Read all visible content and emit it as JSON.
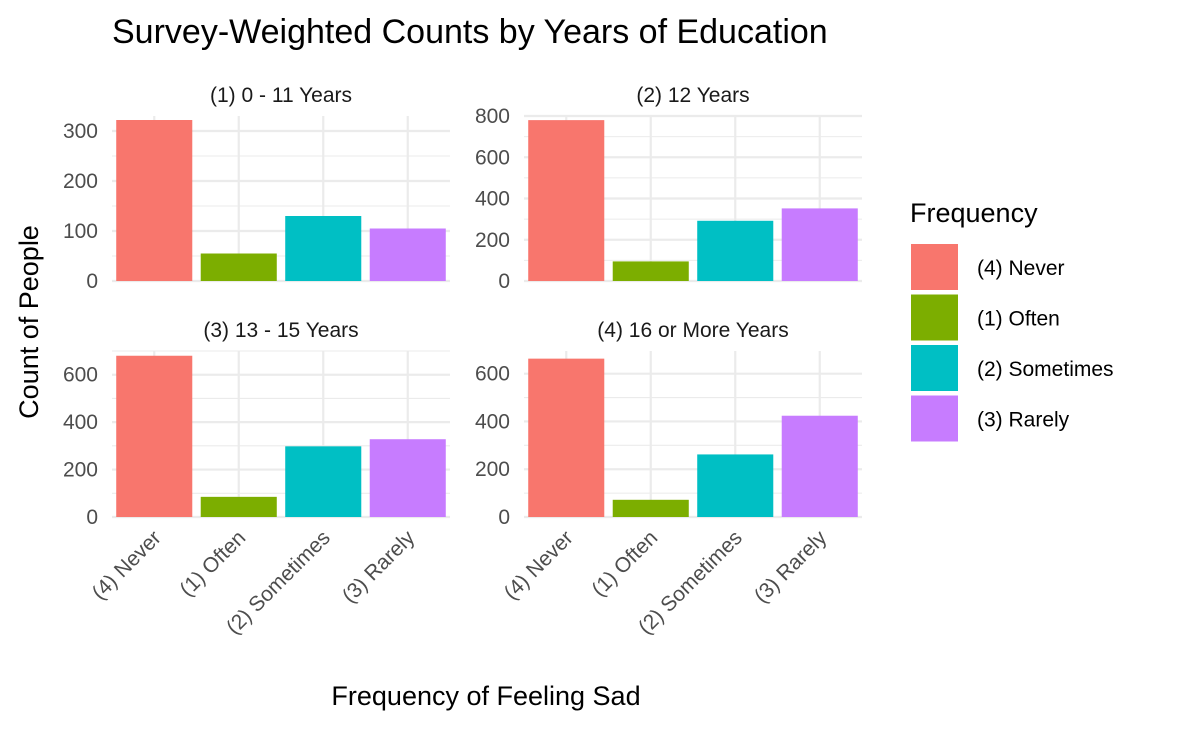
{
  "chart_data": {
    "type": "bar",
    "title": "Survey-Weighted Counts by Years of Education",
    "xlabel": "Frequency of Feeling Sad",
    "ylabel": "Count of People",
    "categories": [
      "(4) Never",
      "(1) Often",
      "(2) Sometimes",
      "(3) Rarely"
    ],
    "legend": {
      "title": "Frequency",
      "placement": "right",
      "entries": [
        "(4) Never",
        "(1) Often",
        "(2) Sometimes",
        "(3) Rarely"
      ]
    },
    "colors": [
      "#F8766D",
      "#7CAE00",
      "#00BFC4",
      "#C77CFF"
    ],
    "grid": true,
    "panels": [
      {
        "title": "(1) 0 - 11 Years",
        "values": [
          322,
          55,
          130,
          105
        ],
        "ylim": [
          0,
          330
        ],
        "yticks": [
          0,
          100,
          200,
          300
        ]
      },
      {
        "title": "(2) 12 Years",
        "values": [
          780,
          95,
          292,
          352
        ],
        "ylim": [
          0,
          800
        ],
        "yticks": [
          0,
          200,
          400,
          600,
          800
        ]
      },
      {
        "title": "(3) 13 - 15 Years",
        "values": [
          680,
          85,
          298,
          328
        ],
        "ylim": [
          0,
          700
        ],
        "yticks": [
          0,
          200,
          400,
          600
        ]
      },
      {
        "title": "(4) 16 or More Years",
        "values": [
          663,
          72,
          262,
          424
        ],
        "ylim": [
          0,
          695
        ],
        "yticks": [
          0,
          200,
          400,
          600
        ]
      }
    ]
  }
}
